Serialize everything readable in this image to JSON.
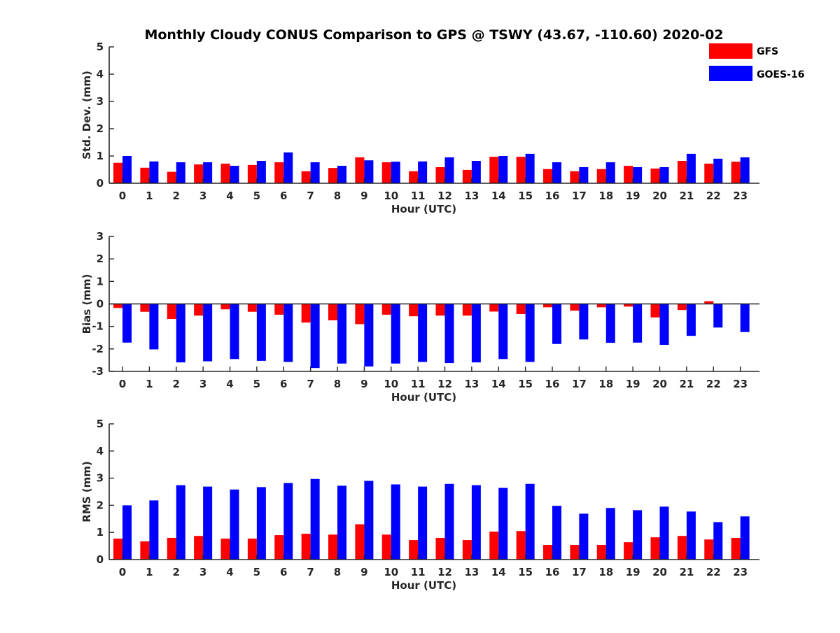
{
  "chart_data": {
    "title": "Monthly Cloudy CONUS Comparison to GPS @ TSWY (43.67, -110.60) 2020-02",
    "legend": [
      {
        "name": "GFS",
        "color": "#ff0000"
      },
      {
        "name": "GOES-16",
        "color": "#0000ff"
      }
    ],
    "categories": [
      "0",
      "1",
      "2",
      "3",
      "4",
      "5",
      "6",
      "7",
      "8",
      "9",
      "10",
      "11",
      "12",
      "13",
      "14",
      "15",
      "16",
      "17",
      "18",
      "19",
      "20",
      "21",
      "22",
      "23"
    ],
    "panels": [
      {
        "type": "bar",
        "xlabel": "Hour (UTC)",
        "ylabel": "Std. Dev. (mm)",
        "ylim": [
          0,
          5
        ],
        "yticks": [
          "0",
          "1",
          "2",
          "3",
          "4",
          "5"
        ],
        "series": [
          {
            "name": "GFS",
            "values": [
              0.75,
              0.57,
              0.42,
              0.69,
              0.72,
              0.67,
              0.77,
              0.44,
              0.56,
              0.95,
              0.77,
              0.44,
              0.59,
              0.49,
              0.97,
              0.97,
              0.52,
              0.44,
              0.52,
              0.64,
              0.54,
              0.82,
              0.72,
              0.79
            ]
          },
          {
            "name": "GOES-16",
            "values": [
              1.0,
              0.8,
              0.77,
              0.77,
              0.64,
              0.82,
              1.13,
              0.77,
              0.64,
              0.84,
              0.79,
              0.8,
              0.95,
              0.82,
              1.0,
              1.08,
              0.77,
              0.59,
              0.77,
              0.59,
              0.59,
              1.08,
              0.9,
              0.95
            ]
          }
        ]
      },
      {
        "type": "bar",
        "xlabel": "Hour (UTC)",
        "ylabel": "Bias (mm)",
        "ylim": [
          -3,
          3
        ],
        "yticks": [
          "-3",
          "-2",
          "-1",
          "0",
          "1",
          "2",
          "3"
        ],
        "series": [
          {
            "name": "GFS",
            "values": [
              -0.18,
              -0.35,
              -0.67,
              -0.52,
              -0.24,
              -0.35,
              -0.48,
              -0.83,
              -0.73,
              -0.9,
              -0.48,
              -0.55,
              -0.52,
              -0.52,
              -0.34,
              -0.45,
              -0.15,
              -0.3,
              -0.15,
              -0.12,
              -0.6,
              -0.27,
              0.12,
              0.02
            ]
          },
          {
            "name": "GOES-16",
            "values": [
              -1.72,
              -2.02,
              -2.6,
              -2.55,
              -2.45,
              -2.53,
              -2.58,
              -2.85,
              -2.65,
              -2.78,
              -2.65,
              -2.58,
              -2.63,
              -2.6,
              -2.45,
              -2.58,
              -1.78,
              -1.58,
              -1.73,
              -1.72,
              -1.82,
              -1.42,
              -1.05,
              -1.25
            ]
          }
        ]
      },
      {
        "type": "bar",
        "xlabel": "Hour (UTC)",
        "ylabel": "RMS (mm)",
        "ylim": [
          0,
          5
        ],
        "yticks": [
          "0",
          "1",
          "2",
          "3",
          "4",
          "5"
        ],
        "series": [
          {
            "name": "GFS",
            "values": [
              0.77,
              0.67,
              0.8,
              0.87,
              0.77,
              0.77,
              0.9,
              0.95,
              0.92,
              1.3,
              0.92,
              0.72,
              0.8,
              0.72,
              1.03,
              1.05,
              0.54,
              0.54,
              0.54,
              0.64,
              0.82,
              0.87,
              0.74,
              0.8
            ]
          },
          {
            "name": "GOES-16",
            "values": [
              2.0,
              2.18,
              2.74,
              2.69,
              2.58,
              2.67,
              2.82,
              2.97,
              2.72,
              2.9,
              2.77,
              2.69,
              2.79,
              2.74,
              2.64,
              2.79,
              1.98,
              1.69,
              1.9,
              1.82,
              1.95,
              1.77,
              1.38,
              1.59
            ]
          }
        ]
      }
    ]
  }
}
